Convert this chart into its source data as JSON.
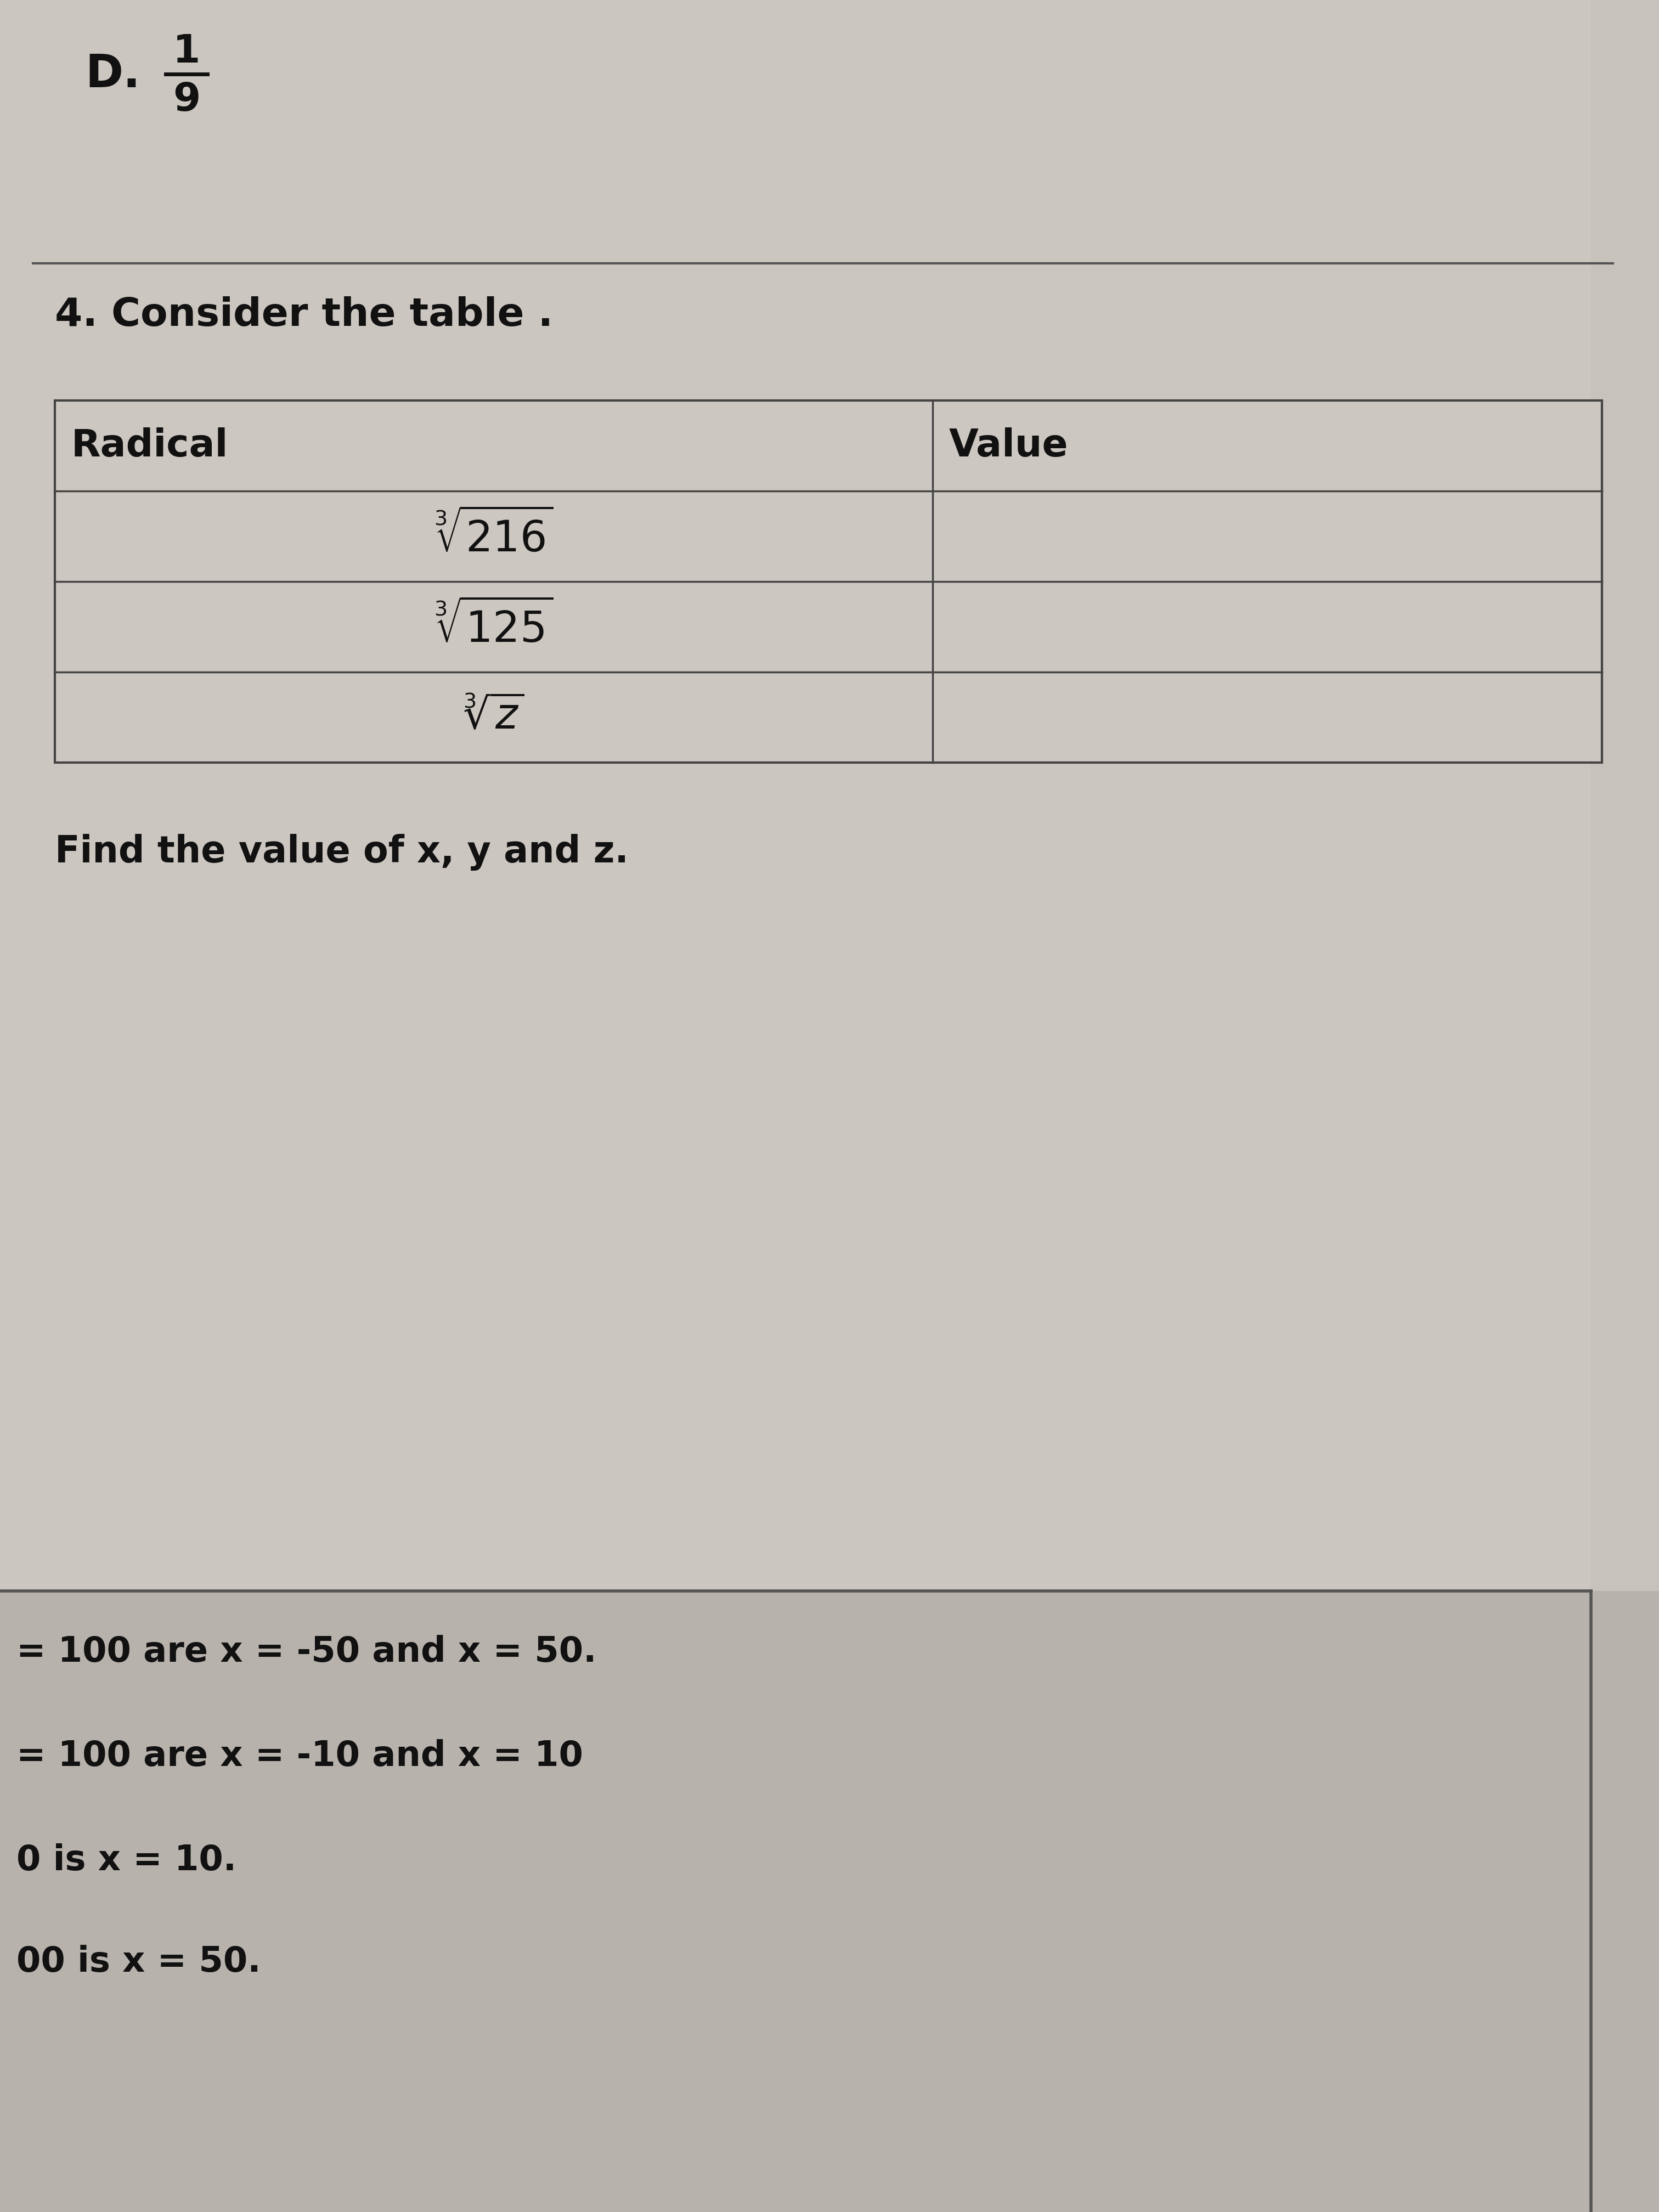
{
  "bg_color": "#bfb9b3",
  "page_bg_color": "#c5bfb9",
  "top_area_bg": "#ccc6c0",
  "bottom_area_bg": "#b8b2ac",
  "text_color": "#111111",
  "table_border_color": "#444444",
  "table_bg": "#ccc6c0",
  "divider_color": "#555555",
  "d_label": "D.",
  "fraction_num": "1",
  "fraction_den": "9",
  "question_text": "4. Consider the table .",
  "table_header": [
    "Radical",
    "Value"
  ],
  "find_text": "Find the value of x, y and z.",
  "bottom_lines": [
    "= 100 are x = -50 and x = 50.",
    "= 100 are x = -10 and x = 10",
    "0 is x = 10.",
    "00 is x = 50."
  ]
}
